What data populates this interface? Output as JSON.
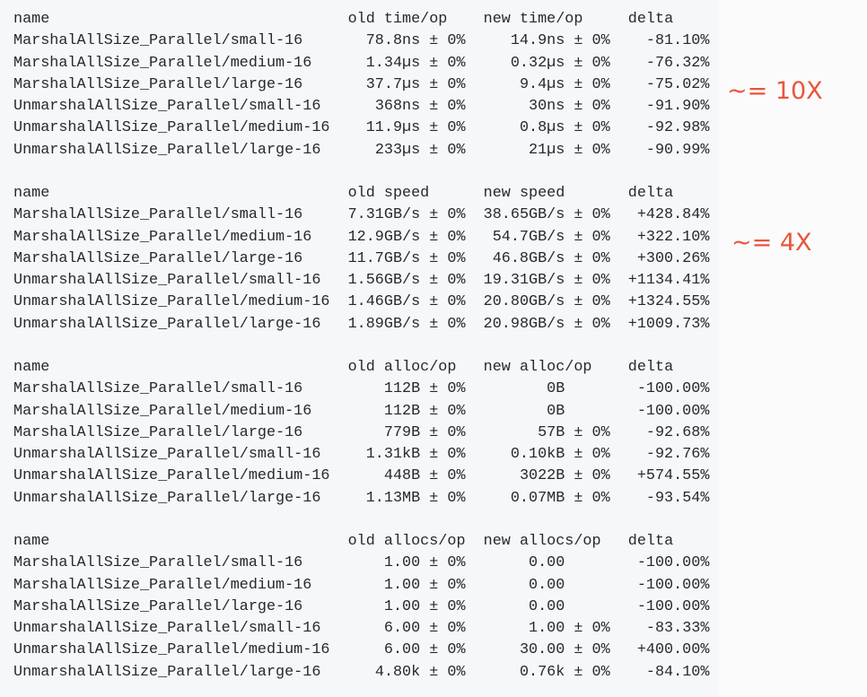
{
  "sections": [
    {
      "headers": [
        "name",
        "old time/op",
        "new time/op",
        "delta"
      ],
      "rows": [
        {
          "name": "MarshalAllSize_Parallel/small-16",
          "old": "78.8ns",
          "old_pm": "± 0%",
          "new": "14.9ns",
          "new_pm": "± 0%",
          "delta": "-81.10%"
        },
        {
          "name": "MarshalAllSize_Parallel/medium-16",
          "old": "1.34µs",
          "old_pm": "± 0%",
          "new": "0.32µs",
          "new_pm": "± 0%",
          "delta": "-76.32%"
        },
        {
          "name": "MarshalAllSize_Parallel/large-16",
          "old": "37.7µs",
          "old_pm": "± 0%",
          "new": "9.4µs",
          "new_pm": "± 0%",
          "delta": "-75.02%"
        },
        {
          "name": "UnmarshalAllSize_Parallel/small-16",
          "old": "368ns",
          "old_pm": "± 0%",
          "new": "30ns",
          "new_pm": "± 0%",
          "delta": "-91.90%"
        },
        {
          "name": "UnmarshalAllSize_Parallel/medium-16",
          "old": "11.9µs",
          "old_pm": "± 0%",
          "new": "0.8µs",
          "new_pm": "± 0%",
          "delta": "-92.98%"
        },
        {
          "name": "UnmarshalAllSize_Parallel/large-16",
          "old": "233µs",
          "old_pm": "± 0%",
          "new": "21µs",
          "new_pm": "± 0%",
          "delta": "-90.99%"
        }
      ]
    },
    {
      "headers": [
        "name",
        "old speed",
        "new speed",
        "delta"
      ],
      "rows": [
        {
          "name": "MarshalAllSize_Parallel/small-16",
          "old": "7.31GB/s",
          "old_pm": "± 0%",
          "new": "38.65GB/s",
          "new_pm": "± 0%",
          "delta": "+428.84%"
        },
        {
          "name": "MarshalAllSize_Parallel/medium-16",
          "old": "12.9GB/s",
          "old_pm": "± 0%",
          "new": "54.7GB/s",
          "new_pm": "± 0%",
          "delta": "+322.10%"
        },
        {
          "name": "MarshalAllSize_Parallel/large-16",
          "old": "11.7GB/s",
          "old_pm": "± 0%",
          "new": "46.8GB/s",
          "new_pm": "± 0%",
          "delta": "+300.26%"
        },
        {
          "name": "UnmarshalAllSize_Parallel/small-16",
          "old": "1.56GB/s",
          "old_pm": "± 0%",
          "new": "19.31GB/s",
          "new_pm": "± 0%",
          "delta": "+1134.41%"
        },
        {
          "name": "UnmarshalAllSize_Parallel/medium-16",
          "old": "1.46GB/s",
          "old_pm": "± 0%",
          "new": "20.80GB/s",
          "new_pm": "± 0%",
          "delta": "+1324.55%"
        },
        {
          "name": "UnmarshalAllSize_Parallel/large-16",
          "old": "1.89GB/s",
          "old_pm": "± 0%",
          "new": "20.98GB/s",
          "new_pm": "± 0%",
          "delta": "+1009.73%"
        }
      ]
    },
    {
      "headers": [
        "name",
        "old alloc/op",
        "new alloc/op",
        "delta"
      ],
      "rows": [
        {
          "name": "MarshalAllSize_Parallel/small-16",
          "old": "112B",
          "old_pm": "± 0%",
          "new": "0B",
          "new_pm": "",
          "delta": "-100.00%"
        },
        {
          "name": "MarshalAllSize_Parallel/medium-16",
          "old": "112B",
          "old_pm": "± 0%",
          "new": "0B",
          "new_pm": "",
          "delta": "-100.00%"
        },
        {
          "name": "MarshalAllSize_Parallel/large-16",
          "old": "779B",
          "old_pm": "± 0%",
          "new": "57B",
          "new_pm": "± 0%",
          "delta": "-92.68%"
        },
        {
          "name": "UnmarshalAllSize_Parallel/small-16",
          "old": "1.31kB",
          "old_pm": "± 0%",
          "new": "0.10kB",
          "new_pm": "± 0%",
          "delta": "-92.76%"
        },
        {
          "name": "UnmarshalAllSize_Parallel/medium-16",
          "old": "448B",
          "old_pm": "± 0%",
          "new": "3022B",
          "new_pm": "± 0%",
          "delta": "+574.55%"
        },
        {
          "name": "UnmarshalAllSize_Parallel/large-16",
          "old": "1.13MB",
          "old_pm": "± 0%",
          "new": "0.07MB",
          "new_pm": "± 0%",
          "delta": "-93.54%"
        }
      ]
    },
    {
      "headers": [
        "name",
        "old allocs/op",
        "new allocs/op",
        "delta"
      ],
      "rows": [
        {
          "name": "MarshalAllSize_Parallel/small-16",
          "old": "1.00",
          "old_pm": "± 0%",
          "new": "0.00",
          "new_pm": "",
          "delta": "-100.00%"
        },
        {
          "name": "MarshalAllSize_Parallel/medium-16",
          "old": "1.00",
          "old_pm": "± 0%",
          "new": "0.00",
          "new_pm": "",
          "delta": "-100.00%"
        },
        {
          "name": "MarshalAllSize_Parallel/large-16",
          "old": "1.00",
          "old_pm": "± 0%",
          "new": "0.00",
          "new_pm": "",
          "delta": "-100.00%"
        },
        {
          "name": "UnmarshalAllSize_Parallel/small-16",
          "old": "6.00",
          "old_pm": "± 0%",
          "new": "1.00",
          "new_pm": "± 0%",
          "delta": "-83.33%"
        },
        {
          "name": "UnmarshalAllSize_Parallel/medium-16",
          "old": "6.00",
          "old_pm": "± 0%",
          "new": "30.00",
          "new_pm": "± 0%",
          "delta": "+400.00%"
        },
        {
          "name": "UnmarshalAllSize_Parallel/large-16",
          "old": "4.80k",
          "old_pm": "± 0%",
          "new": "0.76k",
          "new_pm": "± 0%",
          "delta": "-84.10%"
        }
      ]
    }
  ],
  "annotations": [
    {
      "text": "~= 10X",
      "color": "#e8553a"
    },
    {
      "text": "~= 4X",
      "color": "#e8553a"
    }
  ]
}
